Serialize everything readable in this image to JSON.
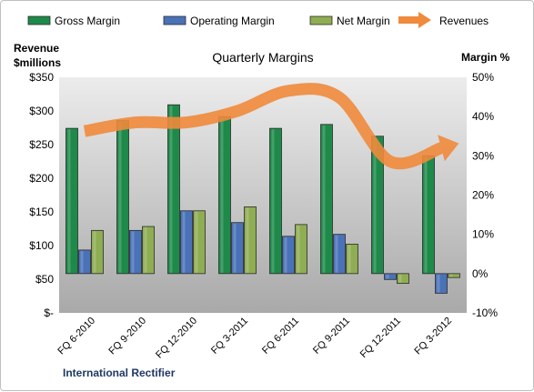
{
  "chart_data": {
    "type": "bar",
    "title": "Quarterly Margins",
    "left_axis_title": [
      "Revenue",
      "$millions"
    ],
    "right_axis_title": "Margin %",
    "company": "International Rectifier",
    "categories": [
      "FQ 6-2010",
      "FQ 9-2010",
      "FQ 12-2010",
      "FQ 3-2011",
      "FQ 6-2011",
      "FQ 9-2011",
      "FQ 12-2011",
      "FQ 3-2012"
    ],
    "left_ylim": [
      0,
      350
    ],
    "left_ticks": [
      0,
      50,
      100,
      150,
      200,
      250,
      300,
      350
    ],
    "left_tick_labels": [
      "$-",
      "$50",
      "$100",
      "$150",
      "$200",
      "$250",
      "$300",
      "$350"
    ],
    "right_ylim": [
      -10,
      50
    ],
    "right_ticks": [
      -10,
      0,
      10,
      20,
      30,
      40,
      50
    ],
    "right_tick_labels": [
      "-10%",
      "0%",
      "10%",
      "20%",
      "30%",
      "40%",
      "50%"
    ],
    "grid": false,
    "legend": "top",
    "series": [
      {
        "name": "Gross Margin",
        "axis": "right",
        "kind": "bar",
        "color": "#1e8a4a",
        "values": [
          37,
          39,
          43,
          40,
          37,
          38,
          35,
          30
        ]
      },
      {
        "name": "Operating Margin",
        "axis": "right",
        "kind": "bar",
        "color": "#4a72b8",
        "values": [
          6,
          11,
          16,
          13,
          9.5,
          10,
          -1.5,
          -5
        ]
      },
      {
        "name": "Net Margin",
        "axis": "right",
        "kind": "bar",
        "color": "#8fad52",
        "values": [
          11,
          12,
          16,
          17,
          12.5,
          7.5,
          -2.5,
          -1
        ]
      },
      {
        "name": "Revenues",
        "axis": "left",
        "kind": "line",
        "color": "#f08a3c",
        "values": [
          270,
          283,
          283,
          300,
          330,
          320,
          225,
          245
        ]
      }
    ]
  }
}
